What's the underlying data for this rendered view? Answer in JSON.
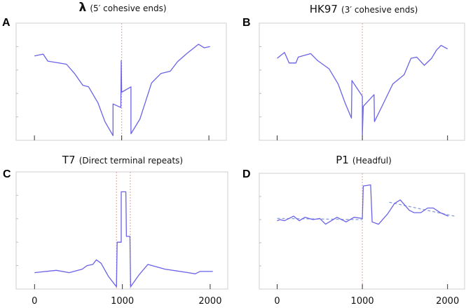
{
  "colors": {
    "series": "#6a62e8",
    "marker_line": "#e8b0a8",
    "trend": "#8a9fd8",
    "frame": "#cfcfcf"
  },
  "chart_data": [
    {
      "type": "line",
      "panel": "A",
      "title": "λ",
      "subtitle": "(5′ cohesive ends)",
      "xlim": [
        -210,
        2200
      ],
      "ylim": [
        0,
        1
      ],
      "xticks": [
        0,
        1000,
        2000
      ],
      "xticklabels_shown": false,
      "grid": false,
      "vlines": [
        1000
      ],
      "series": [
        {
          "x": [
            0,
            100,
            153,
            367,
            460,
            554,
            621,
            728,
            808,
            901,
            901,
            990,
            995,
            1000,
            1107,
            1107,
            1209,
            1343,
            1450,
            1557,
            1639,
            1746,
            1880,
            1946,
            2013
          ],
          "y": [
            0.72,
            0.736,
            0.676,
            0.65,
            0.57,
            0.47,
            0.456,
            0.32,
            0.16,
            0.04,
            0.31,
            0.28,
            0.68,
            0.41,
            0.456,
            0.056,
            0.18,
            0.49,
            0.57,
            0.59,
            0.67,
            0.74,
            0.82,
            0.79,
            0.8
          ]
        }
      ]
    },
    {
      "type": "line",
      "panel": "B",
      "title": "HK97",
      "subtitle": "(3′ cohesive ends)",
      "xlim": [
        -210,
        2200
      ],
      "ylim": [
        0,
        1
      ],
      "xticks": [
        0,
        1000,
        2000
      ],
      "xticklabels_shown": false,
      "grid": false,
      "vlines": [
        1000
      ],
      "series": [
        {
          "x": [
            0,
            86,
            140,
            220,
            247,
            394,
            475,
            609,
            716,
            797,
            872,
            877,
            1000,
            1000,
            1011,
            1137,
            1142,
            1250,
            1357,
            1490,
            1571,
            1638,
            1727,
            1813,
            1870,
            1924,
            2000
          ],
          "y": [
            0.7,
            0.75,
            0.66,
            0.66,
            0.71,
            0.74,
            0.68,
            0.61,
            0.48,
            0.32,
            0.19,
            0.51,
            0.376,
            0.044,
            0.29,
            0.39,
            0.16,
            0.32,
            0.48,
            0.56,
            0.7,
            0.71,
            0.64,
            0.7,
            0.77,
            0.81,
            0.78
          ]
        }
      ]
    },
    {
      "type": "line",
      "panel": "C",
      "title": "T7",
      "subtitle": "(Direct terminal repeats)",
      "xlim": [
        -210,
        2200
      ],
      "ylim": [
        0,
        1
      ],
      "xticks": [
        0,
        1000,
        2000
      ],
      "xticklabels": [
        "0",
        "1000",
        "2000"
      ],
      "grid": false,
      "vlines": [
        933,
        1090
      ],
      "series": [
        {
          "x": [
            0,
            247,
            395,
            543,
            597,
            664,
            704,
            758,
            839,
            933,
            941,
            987,
            987,
            1040,
            1046,
            1086,
            1094,
            1188,
            1290,
            1484,
            1750,
            1830,
            1884,
            2030
          ],
          "y": [
            0.14,
            0.16,
            0.14,
            0.17,
            0.2,
            0.21,
            0.25,
            0.22,
            0.11,
            0.02,
            0.4,
            0.4,
            0.83,
            0.83,
            0.45,
            0.45,
            0.02,
            0.12,
            0.21,
            0.17,
            0.14,
            0.13,
            0.15,
            0.15
          ]
        }
      ]
    },
    {
      "type": "line",
      "panel": "D",
      "title": "P1",
      "subtitle": "(Headful)",
      "xlim": [
        -210,
        2200
      ],
      "ylim": [
        0,
        1
      ],
      "xticks": [
        0,
        1000,
        2000
      ],
      "xticklabels": [
        "0",
        "1000",
        "2000"
      ],
      "grid": false,
      "vlines": [
        1000
      ],
      "series": [
        {
          "x": [
            0,
            32,
            86,
            193,
            260,
            327,
            421,
            501,
            568,
            702,
            809,
            903,
            1000,
            1011,
            1097,
            1115,
            1190,
            1297,
            1378,
            1445,
            1552,
            1606,
            1686,
            1766,
            1833,
            1914,
            2008
          ],
          "y": [
            0.59,
            0.6,
            0.59,
            0.63,
            0.59,
            0.62,
            0.6,
            0.61,
            0.56,
            0.62,
            0.58,
            0.62,
            0.61,
            0.89,
            0.9,
            0.58,
            0.56,
            0.65,
            0.74,
            0.77,
            0.68,
            0.66,
            0.66,
            0.7,
            0.7,
            0.66,
            0.63
          ]
        }
      ],
      "trendlines": [
        {
          "x": [
            0,
            1000
          ],
          "y": [
            0.61,
            0.6
          ]
        },
        {
          "x": [
            1316,
            2080
          ],
          "y": [
            0.75,
            0.63
          ]
        }
      ]
    }
  ]
}
